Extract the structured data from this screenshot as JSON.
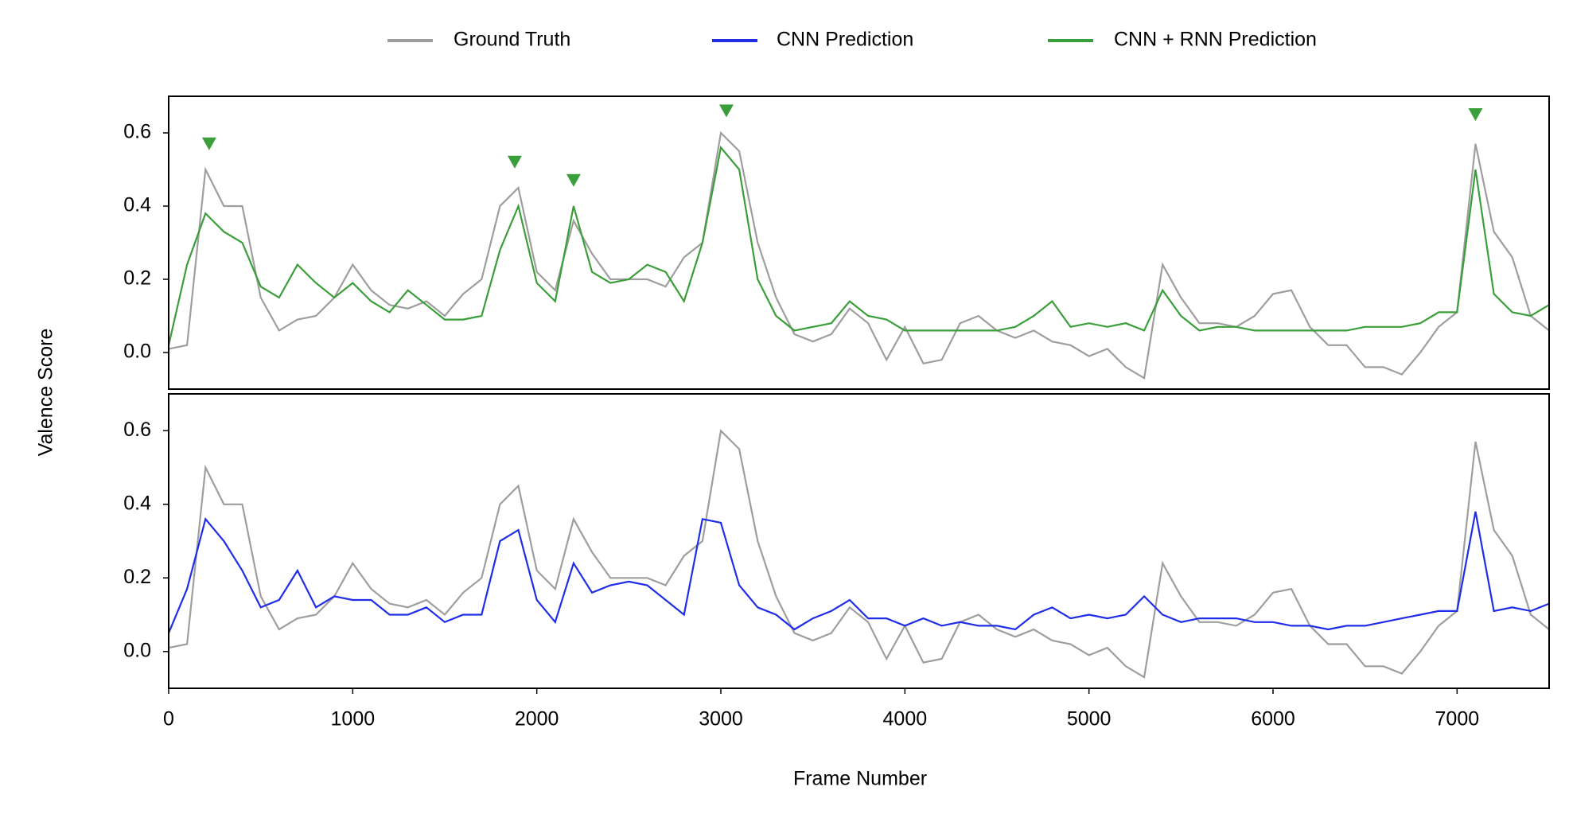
{
  "chart_data": {
    "type": "line",
    "xlabel": "Frame Number",
    "ylabel": "Valence Score",
    "x": [
      0,
      100,
      200,
      300,
      400,
      500,
      600,
      700,
      800,
      900,
      1000,
      1100,
      1200,
      1300,
      1400,
      1500,
      1600,
      1700,
      1800,
      1900,
      2000,
      2100,
      2200,
      2300,
      2400,
      2500,
      2600,
      2700,
      2800,
      2900,
      3000,
      3100,
      3200,
      3300,
      3400,
      3500,
      3600,
      3700,
      3800,
      3900,
      4000,
      4100,
      4200,
      4300,
      4400,
      4500,
      4600,
      4700,
      4800,
      4900,
      5000,
      5100,
      5200,
      5300,
      5400,
      5500,
      5600,
      5700,
      5800,
      5900,
      6000,
      6100,
      6200,
      6300,
      6400,
      6500,
      6600,
      6700,
      6800,
      6900,
      7000,
      7100,
      7200,
      7300,
      7400,
      7500
    ],
    "series": [
      {
        "name": "Ground Truth",
        "color": "#9e9e9e",
        "values": [
          0.01,
          0.02,
          0.5,
          0.4,
          0.4,
          0.15,
          0.06,
          0.09,
          0.1,
          0.15,
          0.24,
          0.17,
          0.13,
          0.12,
          0.14,
          0.1,
          0.16,
          0.2,
          0.4,
          0.45,
          0.22,
          0.17,
          0.36,
          0.27,
          0.2,
          0.2,
          0.2,
          0.18,
          0.26,
          0.3,
          0.6,
          0.55,
          0.3,
          0.15,
          0.05,
          0.03,
          0.05,
          0.12,
          0.08,
          -0.02,
          0.07,
          -0.03,
          -0.02,
          0.08,
          0.1,
          0.06,
          0.04,
          0.06,
          0.03,
          0.02,
          -0.01,
          0.01,
          -0.04,
          -0.07,
          0.24,
          0.15,
          0.08,
          0.08,
          0.07,
          0.1,
          0.16,
          0.17,
          0.07,
          0.02,
          0.02,
          -0.04,
          -0.04,
          -0.06,
          0.0,
          0.07,
          0.11,
          0.57,
          0.33,
          0.26,
          0.1,
          0.06
        ]
      },
      {
        "name": "CNN Prediction",
        "color": "#1f2de8",
        "values": [
          0.05,
          0.17,
          0.36,
          0.3,
          0.22,
          0.12,
          0.14,
          0.22,
          0.12,
          0.15,
          0.14,
          0.14,
          0.1,
          0.1,
          0.12,
          0.08,
          0.1,
          0.1,
          0.3,
          0.33,
          0.14,
          0.08,
          0.24,
          0.16,
          0.18,
          0.19,
          0.18,
          0.14,
          0.1,
          0.36,
          0.35,
          0.18,
          0.12,
          0.1,
          0.06,
          0.09,
          0.11,
          0.14,
          0.09,
          0.09,
          0.07,
          0.09,
          0.07,
          0.08,
          0.07,
          0.07,
          0.06,
          0.1,
          0.12,
          0.09,
          0.1,
          0.09,
          0.1,
          0.15,
          0.1,
          0.08,
          0.09,
          0.09,
          0.09,
          0.08,
          0.08,
          0.07,
          0.07,
          0.06,
          0.07,
          0.07,
          0.08,
          0.09,
          0.1,
          0.11,
          0.11,
          0.38,
          0.11,
          0.12,
          0.11,
          0.13
        ]
      },
      {
        "name": "CNN + RNN Prediction",
        "color": "#3a9e3a",
        "values": [
          0.02,
          0.24,
          0.38,
          0.33,
          0.3,
          0.18,
          0.15,
          0.24,
          0.19,
          0.15,
          0.19,
          0.14,
          0.11,
          0.17,
          0.13,
          0.09,
          0.09,
          0.1,
          0.28,
          0.4,
          0.19,
          0.14,
          0.4,
          0.22,
          0.19,
          0.2,
          0.24,
          0.22,
          0.14,
          0.3,
          0.56,
          0.5,
          0.2,
          0.1,
          0.06,
          0.07,
          0.08,
          0.14,
          0.1,
          0.09,
          0.06,
          0.06,
          0.06,
          0.06,
          0.06,
          0.06,
          0.07,
          0.1,
          0.14,
          0.07,
          0.08,
          0.07,
          0.08,
          0.06,
          0.17,
          0.1,
          0.06,
          0.07,
          0.07,
          0.06,
          0.06,
          0.06,
          0.06,
          0.06,
          0.06,
          0.07,
          0.07,
          0.07,
          0.08,
          0.11,
          0.11,
          0.5,
          0.16,
          0.11,
          0.1,
          0.13
        ]
      }
    ],
    "panels": [
      [
        0,
        2
      ],
      [
        0,
        1
      ]
    ],
    "markers": {
      "x": [
        220,
        1880,
        2200,
        3030,
        7100
      ],
      "y": [
        0.57,
        0.52,
        0.47,
        0.66,
        0.65
      ],
      "color": "#3a9e3a",
      "panel": 0
    },
    "xlim": [
      0,
      7500
    ],
    "xticks": [
      0,
      1000,
      2000,
      3000,
      4000,
      5000,
      6000,
      7000
    ],
    "ylim": [
      -0.1,
      0.7
    ],
    "yticks": [
      {
        "value": 0,
        "label": "0.0"
      },
      0.2,
      0.4,
      0.6
    ],
    "grid": false
  }
}
